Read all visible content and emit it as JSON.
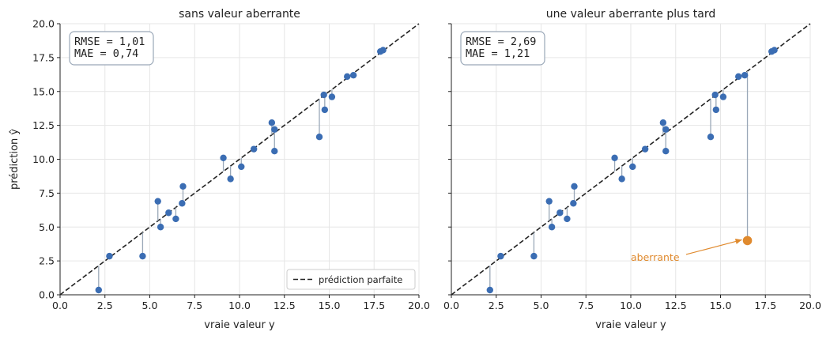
{
  "chart_data": [
    {
      "type": "scatter",
      "title": "sans valeur aberrante",
      "xlabel": "vraie valeur y",
      "ylabel": "prédiction ŷ",
      "xlim": [
        0,
        20
      ],
      "ylim": [
        0,
        20
      ],
      "xticks": [
        "0.0",
        "2.5",
        "5.0",
        "7.5",
        "10.0",
        "12.5",
        "15.0",
        "17.5",
        "20.0"
      ],
      "yticks": [
        "0.0",
        "2.5",
        "5.0",
        "7.5",
        "10.0",
        "12.5",
        "15.0",
        "17.5",
        "20.0"
      ],
      "grid": true,
      "metrics": [
        "RMSE = 1,01",
        "MAE  = 0,74"
      ],
      "legend": {
        "placement": "lower-right",
        "entries": [
          "prédiction parfaite"
        ]
      },
      "series": [
        {
          "x": [
            2.15,
            2.75,
            4.6,
            5.45,
            5.6,
            6.05,
            6.45,
            6.8,
            6.85,
            9.1,
            9.5,
            10.1,
            10.8,
            11.8,
            11.95,
            11.95,
            14.45,
            14.7,
            14.75,
            15.15,
            16.0,
            16.35,
            17.85,
            18.0
          ],
          "y": [
            0.35,
            2.85,
            2.85,
            6.9,
            5.0,
            6.05,
            5.6,
            6.75,
            8.0,
            10.1,
            8.55,
            9.45,
            10.75,
            12.7,
            12.2,
            10.6,
            11.65,
            14.75,
            13.65,
            14.6,
            16.1,
            16.2,
            17.95,
            18.05
          ]
        }
      ],
      "reference_line": {
        "name": "prédiction parfaite",
        "x": [
          0,
          20
        ],
        "y": [
          0,
          20
        ]
      }
    },
    {
      "type": "scatter",
      "title": "une valeur aberrante plus tard",
      "xlabel": "vraie valeur y",
      "xlim": [
        0,
        20
      ],
      "ylim": [
        0,
        20
      ],
      "xticks": [
        "0.0",
        "2.5",
        "5.0",
        "7.5",
        "10.0",
        "12.5",
        "15.0",
        "17.5",
        "20.0"
      ],
      "grid": true,
      "metrics": [
        "RMSE = 2,69",
        "MAE  = 1,21"
      ],
      "series": [
        {
          "x": [
            2.15,
            2.75,
            4.6,
            5.45,
            5.6,
            6.05,
            6.45,
            6.8,
            6.85,
            9.1,
            9.5,
            10.1,
            10.8,
            11.8,
            11.95,
            11.95,
            14.45,
            14.7,
            14.75,
            15.15,
            16.0,
            16.35,
            17.85,
            18.0
          ],
          "y": [
            0.35,
            2.85,
            2.85,
            6.9,
            5.0,
            6.05,
            5.6,
            6.75,
            8.0,
            10.1,
            8.55,
            9.45,
            10.75,
            12.7,
            12.2,
            10.6,
            11.65,
            14.75,
            13.65,
            14.6,
            16.1,
            16.2,
            17.95,
            18.05
          ]
        }
      ],
      "outlier": {
        "x": 16.5,
        "y": 4.0,
        "label": "aberrante",
        "label_x": 10.0,
        "label_y": 2.8
      },
      "reference_line": {
        "x": [
          0,
          20
        ],
        "y": [
          0,
          20
        ]
      }
    }
  ],
  "colors": {
    "points": "#3b6db3",
    "residual": "#9aa8b8",
    "diagonal": "#222222",
    "outlier": "#e08a2e",
    "grid": "#e6e6e6",
    "box_edge": "#9aa8b8"
  }
}
